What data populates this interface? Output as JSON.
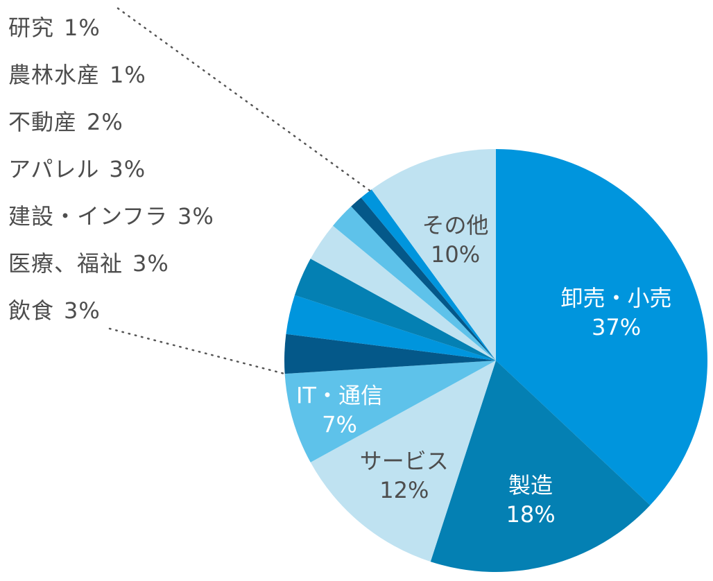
{
  "chart_data": {
    "type": "pie",
    "title": "",
    "start_angle_deg": 0,
    "direction": "clockwise",
    "slices": [
      {
        "label": "卸売・小売",
        "value": 37,
        "value_label": "37%",
        "color": "#0095dd",
        "label_color": "#ffffff"
      },
      {
        "label": "製造",
        "value": 18,
        "value_label": "18%",
        "color": "#0480b3",
        "label_color": "#ffffff"
      },
      {
        "label": "サービス",
        "value": 12,
        "value_label": "12%",
        "color": "#bfe2f1",
        "label_color": "#4d4d4d"
      },
      {
        "label": "IT・通信",
        "value": 7,
        "value_label": "7%",
        "color": "#5ec2ea",
        "label_color": "#ffffff"
      },
      {
        "label": "飲食",
        "value": 3,
        "value_label": "3%",
        "color": "#045889",
        "label_color": "#4d4d4d"
      },
      {
        "label": "医療、福祉",
        "value": 3,
        "value_label": "3%",
        "color": "#0095dd",
        "label_color": "#4d4d4d"
      },
      {
        "label": "建設・インフラ",
        "value": 3,
        "value_label": "3%",
        "color": "#0480b3",
        "label_color": "#4d4d4d"
      },
      {
        "label": "アパレル",
        "value": 3,
        "value_label": "3%",
        "color": "#bfe2f1",
        "label_color": "#4d4d4d"
      },
      {
        "label": "不動産",
        "value": 2,
        "value_label": "2%",
        "color": "#5ec2ea",
        "label_color": "#4d4d4d"
      },
      {
        "label": "農林水産",
        "value": 1,
        "value_label": "1%",
        "color": "#045889",
        "label_color": "#4d4d4d"
      },
      {
        "label": "研究",
        "value": 1,
        "value_label": "1%",
        "color": "#0095dd",
        "label_color": "#4d4d4d"
      },
      {
        "label": "その他",
        "value": 10,
        "value_label": "10%",
        "color": "#bfe2f1",
        "label_color": "#4d4d4d"
      }
    ],
    "side_legend_order": [
      "研究",
      "農林水産",
      "不動産",
      "アパレル",
      "建設・インフラ",
      "医療、福祉",
      "飲食"
    ],
    "inside_labels": [
      "卸売・小売",
      "製造",
      "サービス",
      "IT・通信",
      "その他"
    ],
    "leader_lines": "dotted"
  }
}
